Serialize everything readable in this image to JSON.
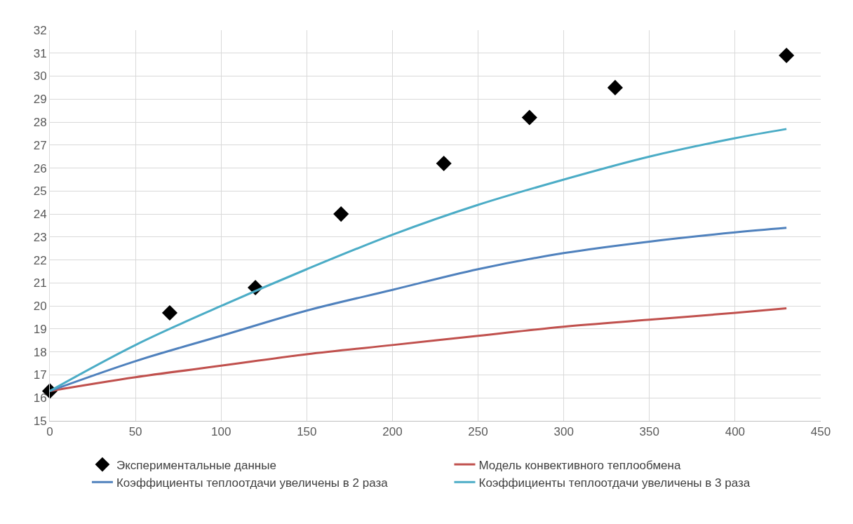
{
  "chart_data": {
    "type": "line",
    "xlim": [
      0,
      450
    ],
    "xticks": [
      0,
      50,
      100,
      150,
      200,
      250,
      300,
      350,
      400,
      450
    ],
    "ylim": [
      15,
      32
    ],
    "yticks": [
      15,
      16,
      17,
      18,
      19,
      20,
      21,
      22,
      23,
      24,
      25,
      26,
      27,
      28,
      29,
      30,
      31,
      32
    ],
    "grid": true,
    "legend": "bottom",
    "line_style": "solid",
    "series": [
      {
        "name": "Экспериментальные данные",
        "type": "scatter",
        "marker": "diamond",
        "color": "#000000",
        "x": [
          0,
          70,
          120,
          170,
          230,
          280,
          330,
          430
        ],
        "values": [
          16.3,
          19.7,
          20.8,
          24.0,
          26.2,
          28.2,
          29.5,
          30.9
        ]
      },
      {
        "name": "Модель конвективного теплообмена",
        "color": "#c0504d",
        "x": [
          0,
          50,
          100,
          150,
          200,
          250,
          300,
          350,
          400,
          430
        ],
        "values": [
          16.3,
          16.9,
          17.4,
          17.9,
          18.3,
          18.7,
          19.1,
          19.4,
          19.7,
          19.9
        ]
      },
      {
        "name": "Коэффициенты теплоотдачи увеличены в 2 раза",
        "color": "#4f81bd",
        "x": [
          0,
          50,
          100,
          150,
          200,
          250,
          300,
          350,
          400,
          430
        ],
        "values": [
          16.3,
          17.6,
          18.7,
          19.8,
          20.7,
          21.6,
          22.3,
          22.8,
          23.2,
          23.4
        ]
      },
      {
        "name": "Коэффициенты теплоотдачи увеличены в 3 раза",
        "color": "#4bacc6",
        "x": [
          0,
          50,
          100,
          150,
          200,
          250,
          300,
          350,
          400,
          430
        ],
        "values": [
          16.3,
          18.3,
          20.0,
          21.6,
          23.1,
          24.4,
          25.5,
          26.5,
          27.3,
          27.7
        ]
      }
    ]
  }
}
